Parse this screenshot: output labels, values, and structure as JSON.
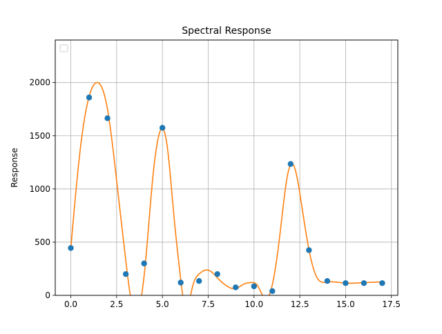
{
  "chart_data": {
    "type": "scatter",
    "title": "Spectral Response",
    "xlabel": "",
    "ylabel": "Response",
    "xlim": [
      -0.85,
      17.85
    ],
    "ylim": [
      0,
      2400
    ],
    "xticks": [
      0.0,
      2.5,
      5.0,
      7.5,
      10.0,
      12.5,
      15.0,
      17.5
    ],
    "xtick_labels": [
      "0.0",
      "2.5",
      "5.0",
      "7.5",
      "10.0",
      "12.5",
      "15.0",
      "17.5"
    ],
    "yticks": [
      0,
      500,
      1000,
      1500,
      2000
    ],
    "ytick_labels": [
      "0",
      "500",
      "1000",
      "1500",
      "2000"
    ],
    "grid": true,
    "legend": {
      "placement": "upper-left",
      "entries": []
    },
    "series": [
      {
        "kind": "points",
        "color": "#1f77b4",
        "x": [
          0,
          1,
          2,
          3,
          4,
          5,
          6,
          7,
          8,
          9,
          10,
          11,
          12,
          13,
          14,
          15,
          16,
          17
        ],
        "y": [
          445,
          1860,
          1665,
          200,
          300,
          1575,
          120,
          135,
          200,
          75,
          85,
          40,
          1235,
          425,
          135,
          115,
          115,
          115
        ]
      },
      {
        "kind": "fitted-curve",
        "color": "#ff7f0e",
        "interpolation": "cubic-spline",
        "x": [
          0,
          0.5,
          1,
          1.4,
          2,
          2.5,
          3,
          3.3,
          3.7,
          4,
          4.5,
          4.8,
          5,
          5.3,
          5.6,
          6,
          6.3,
          6.6,
          7,
          7.3,
          7.6,
          8,
          8.5,
          9,
          9.5,
          9.8,
          10.2,
          10.6,
          11,
          11.4,
          11.8,
          12,
          12.3,
          12.6,
          13,
          13.4,
          14,
          15,
          16,
          17
        ],
        "y": [
          445,
          1350,
          1870,
          2000,
          1750,
          1080,
          330,
          -50,
          -120,
          180,
          1150,
          1500,
          1570,
          1350,
          800,
          150,
          -150,
          50,
          200,
          235,
          230,
          165,
          90,
          65,
          110,
          120,
          90,
          -30,
          100,
          550,
          1100,
          1230,
          1150,
          850,
          430,
          180,
          125,
          115,
          120,
          125
        ]
      }
    ]
  }
}
